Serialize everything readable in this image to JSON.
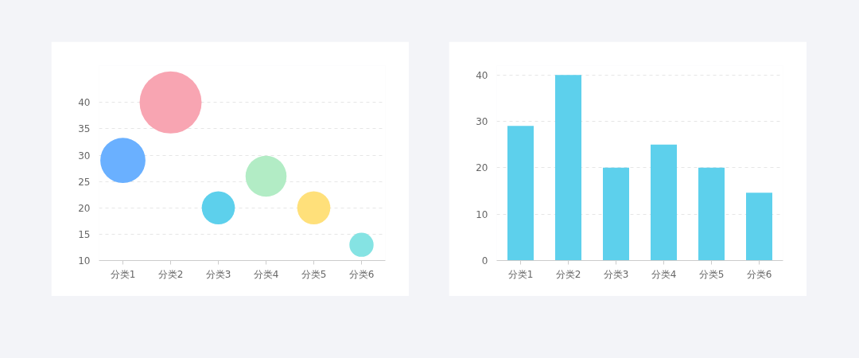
{
  "chart_data": [
    {
      "type": "bubble",
      "categories": [
        "分类1",
        "分类2",
        "分类3",
        "分类4",
        "分类5",
        "分类6"
      ],
      "values": [
        29,
        40,
        20,
        26,
        20,
        13
      ],
      "sizes": [
        0.53,
        1,
        0.285,
        0.437,
        0.285,
        0.152
      ],
      "colors": [
        "#6ab0ff",
        "#f8a5b2",
        "#5dd0ec",
        "#b2ecc5",
        "#ffe07a",
        "#85e3e3"
      ],
      "ylim": [
        10,
        47
      ],
      "yticks": [
        10,
        15,
        20,
        25,
        30,
        35,
        40
      ],
      "grid": "y"
    },
    {
      "type": "bar",
      "categories": [
        "分类1",
        "分类2",
        "分类3",
        "分类4",
        "分类5",
        "分类6"
      ],
      "values": [
        29,
        40,
        20,
        25,
        20,
        14.6
      ],
      "color": "#5dd0ec",
      "ylim": [
        0,
        42
      ],
      "yticks": [
        0,
        10,
        20,
        30,
        40
      ],
      "grid": "y"
    }
  ]
}
